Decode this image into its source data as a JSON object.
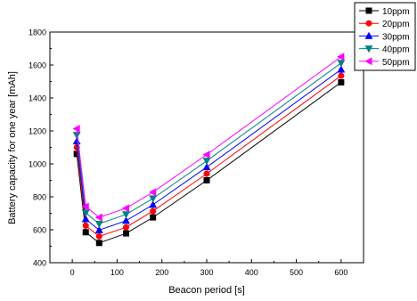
{
  "chart_data": {
    "type": "line",
    "xlabel": "Beacon period [s]",
    "ylabel": "Battery capacity for one year [mAh]",
    "xlim": [
      -50,
      650
    ],
    "ylim": [
      400,
      1800
    ],
    "xticks": [
      "0",
      "100",
      "200",
      "300",
      "400",
      "500",
      "600"
    ],
    "yticks": [
      "400",
      "600",
      "800",
      "1000",
      "1200",
      "1400",
      "1600",
      "1800"
    ],
    "legend_position": "top-right",
    "x": [
      10,
      30,
      60,
      120,
      180,
      300,
      600
    ],
    "series": [
      {
        "name": "10ppm",
        "color": "#000000",
        "marker": "square",
        "values": [
          1060,
          585,
          520,
          578,
          675,
          900,
          1495
        ]
      },
      {
        "name": "20ppm",
        "color": "#ff0000",
        "marker": "circle",
        "values": [
          1100,
          625,
          560,
          615,
          713,
          940,
          1535
        ]
      },
      {
        "name": "30ppm",
        "color": "#0000ff",
        "marker": "triangle-up",
        "values": [
          1137,
          665,
          598,
          655,
          752,
          980,
          1573
        ]
      },
      {
        "name": "40ppm",
        "color": "#008080",
        "marker": "triangle-down",
        "values": [
          1175,
          703,
          636,
          693,
          790,
          1018,
          1612
        ]
      },
      {
        "name": "50ppm",
        "color": "#ff00ff",
        "marker": "triangle-left",
        "values": [
          1213,
          741,
          675,
          731,
          828,
          1056,
          1650
        ]
      }
    ]
  }
}
